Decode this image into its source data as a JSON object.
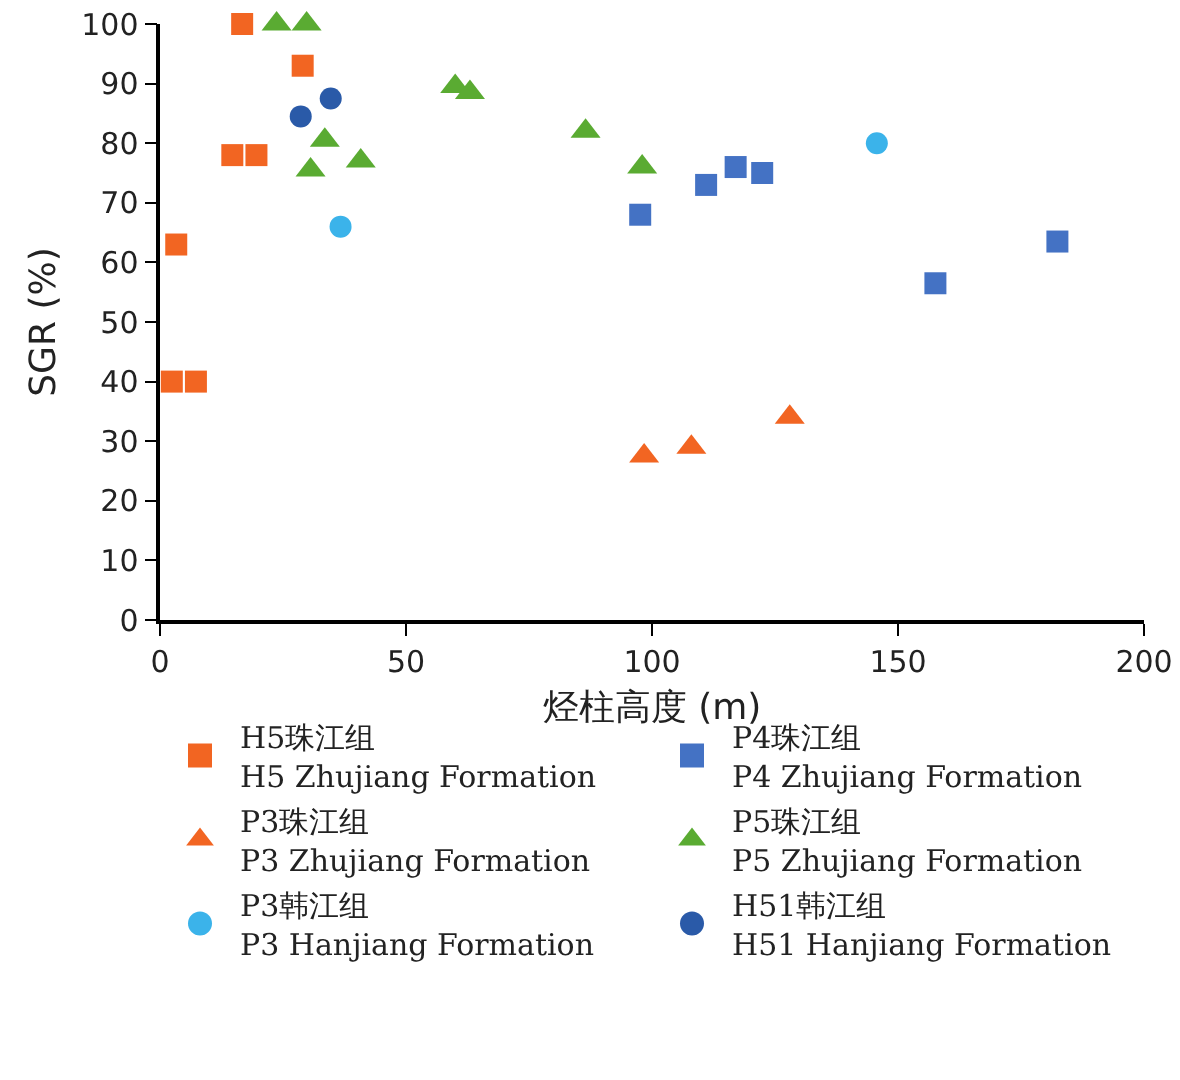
{
  "chart_data": {
    "type": "scatter",
    "xlabel": "烃柱高度 (m)",
    "ylabel": "SGR (%)",
    "xlim": [
      0,
      200
    ],
    "xticks": [
      0,
      50,
      100,
      150,
      200
    ],
    "ylim": [
      0,
      100
    ],
    "yticks": [
      0,
      10,
      20,
      30,
      40,
      50,
      60,
      70,
      80,
      90,
      100
    ],
    "grid": false,
    "legend": "bottom",
    "series": [
      {
        "name": "H5珠江组\nH5 Zhujiang Formation",
        "color": "#f26522",
        "marker": "square",
        "x": [
          16.7,
          29,
          14.7,
          19.6,
          3.3,
          2.4,
          7.3
        ],
        "values": [
          100,
          93,
          78,
          78,
          63,
          40,
          40
        ]
      },
      {
        "name": "P4珠江组\nP4 Zhujiang Formation",
        "color": "#4472c4",
        "marker": "square",
        "x": [
          97.6,
          111,
          117,
          122.4,
          182.4,
          157.6
        ],
        "values": [
          68,
          73,
          76,
          75,
          63.5,
          56.5
        ]
      },
      {
        "name": "P3珠江组\nP3 Zhujiang Formation",
        "color": "#f26522",
        "marker": "triangle",
        "x": [
          98.4,
          108,
          128
        ],
        "values": [
          27.5,
          29,
          34
        ]
      },
      {
        "name": "P5珠江组\nP5 Zhujiang Formation",
        "color": "#5aab32",
        "marker": "triangle",
        "x": [
          23.7,
          29.8,
          60,
          63,
          86.5,
          98,
          33.5,
          30.6,
          40.8
        ],
        "values": [
          100,
          100,
          89.5,
          88.5,
          82,
          76,
          80.5,
          75.5,
          77
        ]
      },
      {
        "name": "P3韩江组\nP3 Hanjiang Formation",
        "color": "#3bb3ea",
        "marker": "circle",
        "x": [
          36.7,
          145.7
        ],
        "values": [
          66,
          80
        ]
      },
      {
        "name": "H51韩江组\nH51 Hanjiang Formation",
        "color": "#2a5aa8",
        "marker": "circle",
        "x": [
          28.6,
          34.7
        ],
        "values": [
          84.5,
          87.5
        ]
      }
    ]
  }
}
